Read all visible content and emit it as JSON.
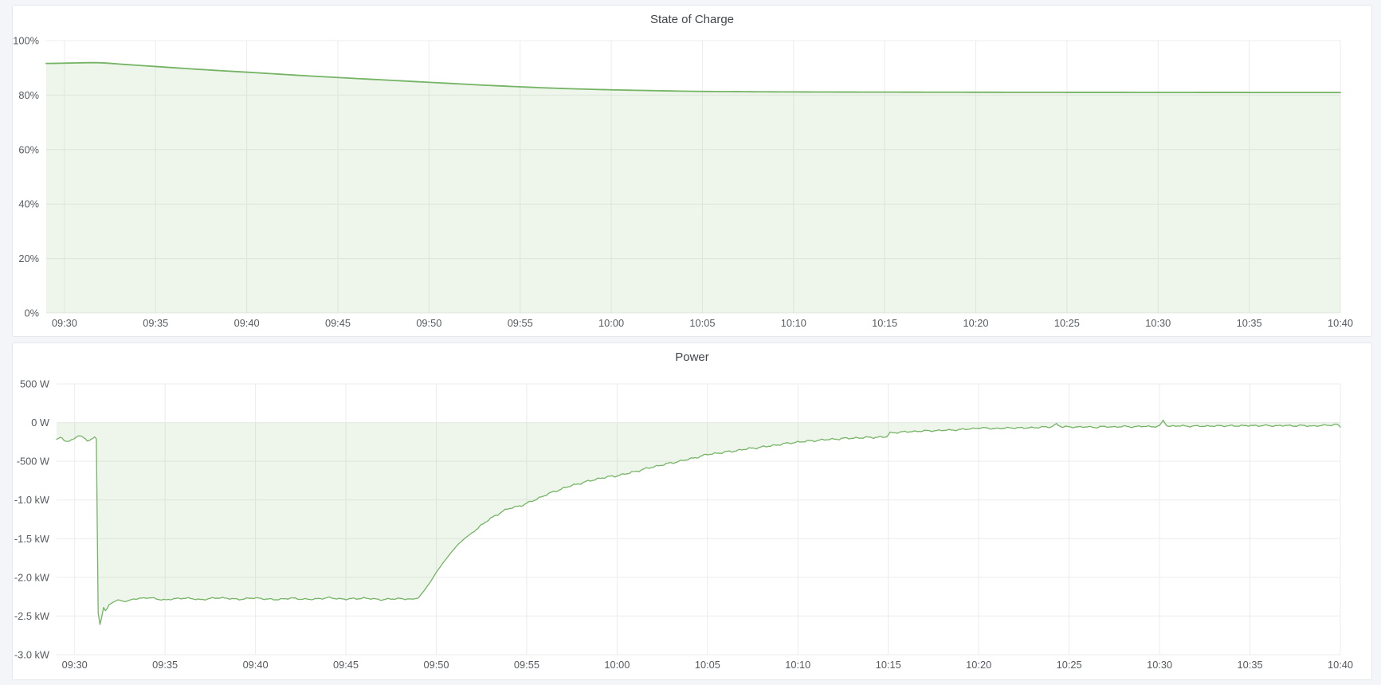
{
  "panels": [
    {
      "title": "State of Charge"
    },
    {
      "title": "Power"
    }
  ],
  "chart_data": [
    {
      "type": "area",
      "title": "State of Charge",
      "ylabel": "",
      "xlabel": "",
      "y_unit": "percent",
      "y_range": [
        0,
        100
      ],
      "x_range_min": [
        0,
        71
      ],
      "grid": true,
      "legend": "none",
      "fill_to": 0,
      "line_width": 1.8,
      "sample_step": 0.4,
      "colors": {
        "line": "#74b464",
        "fill": "rgba(116,180,100,0.12)",
        "grid": "#ececec",
        "tick_text": "#565b61"
      },
      "x_ticks": [
        [
          1,
          "09:30"
        ],
        [
          6,
          "09:35"
        ],
        [
          11,
          "09:40"
        ],
        [
          16,
          "09:45"
        ],
        [
          21,
          "09:50"
        ],
        [
          26,
          "09:55"
        ],
        [
          31,
          "10:00"
        ],
        [
          36,
          "10:05"
        ],
        [
          41,
          "10:10"
        ],
        [
          46,
          "10:15"
        ],
        [
          51,
          "10:20"
        ],
        [
          56,
          "10:25"
        ],
        [
          61,
          "10:30"
        ],
        [
          66,
          "10:35"
        ],
        [
          71,
          "10:40"
        ]
      ],
      "y_ticks": [
        [
          100,
          "100%"
        ],
        [
          80,
          "80%"
        ],
        [
          60,
          "60%"
        ],
        [
          40,
          "40%"
        ],
        [
          20,
          "20%"
        ],
        [
          0,
          "0%"
        ]
      ],
      "noise": [],
      "series": [
        {
          "name": "State of Charge",
          "points": [
            [
              0,
              91.62
            ],
            [
              0.7,
              91.68
            ],
            [
              1.4,
              91.78
            ],
            [
              2.1,
              91.88
            ],
            [
              2.6,
              91.93
            ],
            [
              3.0,
              91.88
            ],
            [
              3.5,
              91.65
            ],
            [
              4,
              91.4
            ],
            [
              4.5,
              91.15
            ],
            [
              5,
              90.95
            ],
            [
              6,
              90.5
            ],
            [
              7,
              90.05
            ],
            [
              8,
              89.62
            ],
            [
              9,
              89.2
            ],
            [
              10,
              88.8
            ],
            [
              11,
              88.42
            ],
            [
              12,
              88.02
            ],
            [
              13,
              87.6
            ],
            [
              14,
              87.2
            ],
            [
              15,
              86.82
            ],
            [
              16,
              86.45
            ],
            [
              17,
              86.1
            ],
            [
              18,
              85.75
            ],
            [
              19,
              85.4
            ],
            [
              20,
              85.05
            ],
            [
              21,
              84.7
            ],
            [
              22,
              84.35
            ],
            [
              23,
              84.0
            ],
            [
              24,
              83.65
            ],
            [
              25,
              83.35
            ],
            [
              26,
              83.05
            ],
            [
              27,
              82.75
            ],
            [
              28,
              82.5
            ],
            [
              29,
              82.3
            ],
            [
              30,
              82.1
            ],
            [
              31,
              81.95
            ],
            [
              32,
              81.8
            ],
            [
              33,
              81.68
            ],
            [
              34,
              81.55
            ],
            [
              35,
              81.45
            ],
            [
              36,
              81.35
            ],
            [
              37,
              81.3
            ],
            [
              38,
              81.26
            ],
            [
              39,
              81.22
            ],
            [
              40,
              81.19
            ],
            [
              42,
              81.15
            ],
            [
              44,
              81.12
            ],
            [
              46,
              81.1
            ],
            [
              48,
              81.08
            ],
            [
              50,
              81.06
            ],
            [
              53,
              81.04
            ],
            [
              56,
              81.02
            ],
            [
              60,
              81.0
            ],
            [
              64,
              80.98
            ],
            [
              68,
              80.96
            ],
            [
              71,
              80.95
            ]
          ]
        }
      ]
    },
    {
      "type": "area",
      "title": "Power",
      "ylabel": "",
      "xlabel": "",
      "y_unit": "watt",
      "y_range": [
        -3000,
        500
      ],
      "x_range_min": [
        0,
        71
      ],
      "grid": true,
      "legend": "none",
      "fill_to": 0,
      "line_width": 1.3,
      "sample_step": 0.1,
      "colors": {
        "line": "#74b464",
        "fill": "rgba(116,180,100,0.12)",
        "grid": "#ececec",
        "tick_text": "#565b61"
      },
      "x_ticks": [
        [
          1,
          "09:30"
        ],
        [
          6,
          "09:35"
        ],
        [
          11,
          "09:40"
        ],
        [
          16,
          "09:45"
        ],
        [
          21,
          "09:50"
        ],
        [
          26,
          "09:55"
        ],
        [
          31,
          "10:00"
        ],
        [
          36,
          "10:05"
        ],
        [
          41,
          "10:10"
        ],
        [
          46,
          "10:15"
        ],
        [
          51,
          "10:20"
        ],
        [
          56,
          "10:25"
        ],
        [
          61,
          "10:30"
        ],
        [
          66,
          "10:35"
        ],
        [
          71,
          "10:40"
        ]
      ],
      "y_ticks": [
        [
          500,
          "500 W"
        ],
        [
          0,
          "0 W"
        ],
        [
          -500,
          "-500 W"
        ],
        [
          -1000,
          "-1.0 kW"
        ],
        [
          -1500,
          "-1.5 kW"
        ],
        [
          -2000,
          "-2.0 kW"
        ],
        [
          -2500,
          "-2.5 kW"
        ],
        [
          -3000,
          "-3.0 kW"
        ]
      ],
      "noise": [
        {
          "from": 0,
          "to": 2.15,
          "amp": 14
        },
        {
          "from": 4.2,
          "to": 19.6,
          "amp": 13
        },
        {
          "from": 23,
          "to": 45.8,
          "amp": 16
        },
        {
          "from": 46.1,
          "to": 71,
          "amp": 13
        }
      ],
      "series": [
        {
          "name": "Power",
          "points": [
            [
              0,
              -220
            ],
            [
              0.25,
              -190
            ],
            [
              0.5,
              -235
            ],
            [
              0.75,
              -245
            ],
            [
              1.0,
              -205
            ],
            [
              1.2,
              -162
            ],
            [
              1.45,
              -188
            ],
            [
              1.7,
              -232
            ],
            [
              1.95,
              -215
            ],
            [
              2.15,
              -188
            ],
            [
              2.2,
              -210
            ],
            [
              2.28,
              -2430
            ],
            [
              2.42,
              -2640
            ],
            [
              2.58,
              -2380
            ],
            [
              2.72,
              -2440
            ],
            [
              2.9,
              -2355
            ],
            [
              3.1,
              -2325
            ],
            [
              3.4,
              -2290
            ],
            [
              3.8,
              -2315
            ],
            [
              4.2,
              -2282
            ],
            [
              5,
              -2262
            ],
            [
              6,
              -2292
            ],
            [
              7,
              -2266
            ],
            [
              8,
              -2288
            ],
            [
              9,
              -2262
            ],
            [
              10,
              -2284
            ],
            [
              11,
              -2266
            ],
            [
              12,
              -2288
            ],
            [
              13,
              -2270
            ],
            [
              14,
              -2286
            ],
            [
              15,
              -2264
            ],
            [
              16,
              -2282
            ],
            [
              17,
              -2268
            ],
            [
              18,
              -2288
            ],
            [
              19,
              -2272
            ],
            [
              19.6,
              -2286
            ],
            [
              20,
              -2268
            ],
            [
              20.3,
              -2180
            ],
            [
              20.7,
              -2050
            ],
            [
              21,
              -1935
            ],
            [
              21.4,
              -1805
            ],
            [
              21.8,
              -1685
            ],
            [
              22.2,
              -1575
            ],
            [
              22.6,
              -1492
            ],
            [
              23,
              -1420
            ],
            [
              23.4,
              -1342
            ],
            [
              23.8,
              -1272
            ],
            [
              24.2,
              -1212
            ],
            [
              24.6,
              -1155
            ],
            [
              25,
              -1112
            ],
            [
              25.5,
              -1082
            ],
            [
              25.9,
              -1058
            ],
            [
              26.4,
              -1002
            ],
            [
              27,
              -942
            ],
            [
              27.5,
              -892
            ],
            [
              28,
              -852
            ],
            [
              28.5,
              -812
            ],
            [
              29,
              -782
            ],
            [
              29.5,
              -752
            ],
            [
              30,
              -722
            ],
            [
              30.5,
              -702
            ],
            [
              31,
              -686
            ],
            [
              31.5,
              -662
            ],
            [
              32,
              -632
            ],
            [
              32.5,
              -602
            ],
            [
              33,
              -572
            ],
            [
              33.5,
              -546
            ],
            [
              34,
              -522
            ],
            [
              34.5,
              -496
            ],
            [
              35,
              -472
            ],
            [
              35.5,
              -442
            ],
            [
              36,
              -412
            ],
            [
              36.5,
              -396
            ],
            [
              37,
              -381
            ],
            [
              37.5,
              -366
            ],
            [
              38,
              -346
            ],
            [
              38.5,
              -331
            ],
            [
              39,
              -316
            ],
            [
              39.5,
              -301
            ],
            [
              40,
              -282
            ],
            [
              40.5,
              -266
            ],
            [
              41,
              -251
            ],
            [
              41.5,
              -241
            ],
            [
              42,
              -231
            ],
            [
              42.5,
              -221
            ],
            [
              43,
              -213
            ],
            [
              43.5,
              -206
            ],
            [
              44,
              -200
            ],
            [
              44.5,
              -196
            ],
            [
              45,
              -191
            ],
            [
              45.5,
              -188
            ],
            [
              45.9,
              -186
            ],
            [
              46.1,
              -132
            ],
            [
              46.5,
              -126
            ],
            [
              47,
              -119
            ],
            [
              47.5,
              -113
            ],
            [
              48,
              -108
            ],
            [
              48.5,
              -104
            ],
            [
              49,
              -100
            ],
            [
              49.5,
              -96
            ],
            [
              50,
              -90
            ],
            [
              50.5,
              -82
            ],
            [
              51,
              -68
            ],
            [
              51.5,
              -73
            ],
            [
              52,
              -77
            ],
            [
              52.5,
              -71
            ],
            [
              53,
              -66
            ],
            [
              53.5,
              -70
            ],
            [
              54,
              -64
            ],
            [
              54.5,
              -60
            ],
            [
              55,
              -55
            ],
            [
              55.3,
              -18
            ],
            [
              55.6,
              -58
            ],
            [
              56,
              -54
            ],
            [
              56.5,
              -58
            ],
            [
              57,
              -55
            ],
            [
              57.5,
              -60
            ],
            [
              58,
              -52
            ],
            [
              58.5,
              -56
            ],
            [
              59,
              -50
            ],
            [
              59.5,
              -54
            ],
            [
              60,
              -48
            ],
            [
              60.5,
              -52
            ],
            [
              61,
              -45
            ],
            [
              61.2,
              25
            ],
            [
              61.45,
              -50
            ],
            [
              62,
              -40
            ],
            [
              62.5,
              -48
            ],
            [
              63,
              -42
            ],
            [
              63.5,
              -50
            ],
            [
              64,
              -40
            ],
            [
              64.5,
              -46
            ],
            [
              65,
              -38
            ],
            [
              65.5,
              -45
            ],
            [
              66,
              -35
            ],
            [
              66.5,
              -42
            ],
            [
              67,
              -36
            ],
            [
              67.5,
              -44
            ],
            [
              68,
              -36
            ],
            [
              68.5,
              -42
            ],
            [
              69,
              -38
            ],
            [
              69.5,
              -45
            ],
            [
              70,
              -38
            ],
            [
              70.5,
              -30
            ],
            [
              70.8,
              -24
            ],
            [
              71,
              -55
            ]
          ]
        }
      ]
    }
  ]
}
